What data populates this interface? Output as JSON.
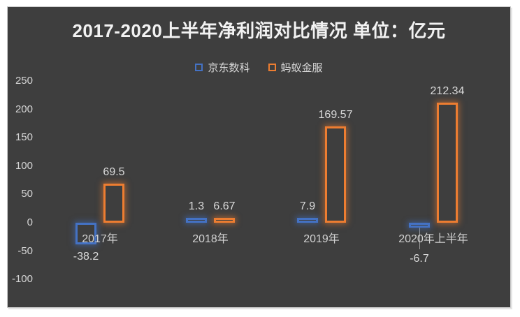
{
  "card": {
    "background": "#3e3e3e",
    "page_background": "#ffffff"
  },
  "chart_data": {
    "type": "bar",
    "title": "2017-2020上半年净利润对比情况 单位：亿元",
    "unit": "亿元",
    "categories": [
      "2017年",
      "2018年",
      "2019年",
      "2020年上半年"
    ],
    "series": [
      {
        "name": "京东数科",
        "color": "#4472C4",
        "values": [
          -38.2,
          1.3,
          7.9,
          -6.7
        ],
        "labels": [
          "-38.2",
          "1.3",
          "7.9",
          "-6.7"
        ]
      },
      {
        "name": "蚂蚁金服",
        "color": "#ED7D31",
        "values": [
          69.5,
          6.67,
          169.57,
          212.34
        ],
        "labels": [
          "69.5",
          "6.67",
          "169.57",
          "212.34"
        ]
      }
    ],
    "y_ticks": [
      250,
      200,
      150,
      100,
      50,
      0,
      -50,
      -100
    ],
    "ylim": [
      -100,
      250
    ],
    "grid": false,
    "legend_position": "top",
    "bar_style": "hollow-outline-glow",
    "title_color": "#f2f2f2",
    "text_color": "#d9d9d9"
  }
}
